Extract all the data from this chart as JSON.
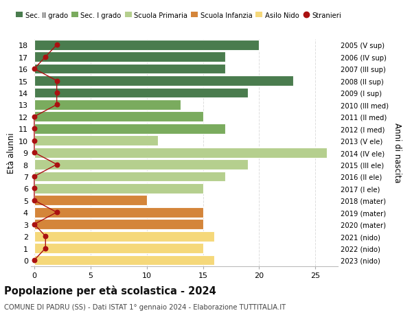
{
  "ages": [
    18,
    17,
    16,
    15,
    14,
    13,
    12,
    11,
    10,
    9,
    8,
    7,
    6,
    5,
    4,
    3,
    2,
    1,
    0
  ],
  "years": [
    "2005 (V sup)",
    "2006 (IV sup)",
    "2007 (III sup)",
    "2008 (II sup)",
    "2009 (I sup)",
    "2010 (III med)",
    "2011 (II med)",
    "2012 (I med)",
    "2013 (V ele)",
    "2014 (IV ele)",
    "2015 (III ele)",
    "2016 (II ele)",
    "2017 (I ele)",
    "2018 (mater)",
    "2019 (mater)",
    "2020 (mater)",
    "2021 (nido)",
    "2022 (nido)",
    "2023 (nido)"
  ],
  "values": [
    20,
    17,
    17,
    23,
    19,
    13,
    15,
    17,
    11,
    26,
    19,
    17,
    15,
    10,
    15,
    15,
    16,
    15,
    16
  ],
  "stranieri": [
    2,
    1,
    0,
    2,
    2,
    2,
    0,
    0,
    0,
    0,
    2,
    0,
    0,
    0,
    2,
    0,
    1,
    1,
    0
  ],
  "bar_colors": [
    "#4a7c4e",
    "#4a7c4e",
    "#4a7c4e",
    "#4a7c4e",
    "#4a7c4e",
    "#7aab5e",
    "#7aab5e",
    "#7aab5e",
    "#b5cf8e",
    "#b5cf8e",
    "#b5cf8e",
    "#b5cf8e",
    "#b5cf8e",
    "#d4853a",
    "#d4853a",
    "#d4853a",
    "#f5d87a",
    "#f5d87a",
    "#f5d87a"
  ],
  "legend_labels": [
    "Sec. II grado",
    "Sec. I grado",
    "Scuola Primaria",
    "Scuola Infanzia",
    "Asilo Nido",
    "Stranieri"
  ],
  "legend_colors": [
    "#4a7c4e",
    "#7aab5e",
    "#b5cf8e",
    "#d4853a",
    "#f5d87a",
    "#aa1111"
  ],
  "title": "Popolazione per età scolastica - 2024",
  "subtitle": "COMUNE DI PADRU (SS) - Dati ISTAT 1° gennaio 2024 - Elaborazione TUTTITALIA.IT",
  "ylabel_left": "Età alunni",
  "ylabel_right": "Anni di nascita",
  "xlim_max": 27,
  "xticks": [
    0,
    5,
    10,
    15,
    20,
    25
  ],
  "background_color": "#ffffff",
  "stranieri_color": "#aa1111",
  "bar_height": 0.85,
  "grid_color": "#dddddd"
}
